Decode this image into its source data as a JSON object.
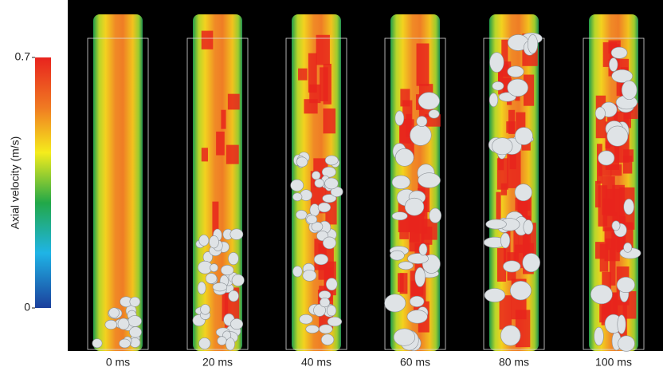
{
  "colorbar": {
    "title": "Axial velocity (m/s)",
    "lim": [
      0,
      0.7
    ],
    "ticks": [
      0,
      0.7
    ]
  },
  "panels": [
    {
      "label": "0 ms"
    },
    {
      "label": "20 ms"
    },
    {
      "label": "40 ms"
    },
    {
      "label": "60 ms"
    },
    {
      "label": "80 ms"
    },
    {
      "label": "100 ms"
    }
  ]
}
